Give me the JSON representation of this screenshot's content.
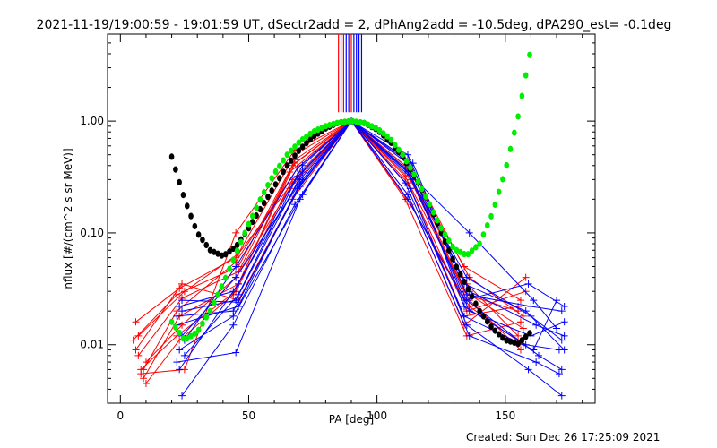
{
  "chart_data": {
    "type": "line",
    "title": "2021-11-19/19:00:59 - 19:01:59 UT, dSectr2add = 2, dPhAng2add = -10.5deg, dPA290_est= -0.1deg",
    "xlabel": "PA [deg]",
    "ylabel": "nflux [#/(cm^2 s sr MeV)]",
    "xlim": [
      -5,
      185
    ],
    "ylim": [
      0.003,
      6
    ],
    "yscale": "log",
    "grid": false,
    "xticks": [
      0,
      50,
      100,
      150
    ],
    "xtick_labels": [
      "0",
      "50",
      "100",
      "150"
    ],
    "yticks": [
      0.01,
      0.1,
      1.0
    ],
    "ytick_labels": [
      "0.01",
      "0.10",
      "1.00"
    ],
    "colors": {
      "red": "#ff0000",
      "blue": "#0000ff",
      "black": "#000000",
      "green": "#00ee00"
    },
    "red_traces": [
      [
        [
          5,
          0.011
        ],
        [
          22,
          0.028
        ],
        [
          46,
          0.05
        ],
        [
          67,
          0.4
        ],
        [
          90,
          1.0
        ],
        [
          112,
          0.35
        ],
        [
          135,
          0.035
        ],
        [
          155,
          0.012
        ]
      ],
      [
        [
          6,
          0.016
        ],
        [
          23,
          0.032
        ],
        [
          45,
          0.06
        ],
        [
          68,
          0.5
        ],
        [
          90,
          1.0
        ],
        [
          113,
          0.3
        ],
        [
          134,
          0.03
        ],
        [
          157,
          0.014
        ]
      ],
      [
        [
          7,
          0.008
        ],
        [
          24,
          0.026
        ],
        [
          46,
          0.045
        ],
        [
          66,
          0.35
        ],
        [
          90,
          1.0
        ],
        [
          111,
          0.4
        ],
        [
          136,
          0.025
        ],
        [
          156,
          0.009
        ]
      ],
      [
        [
          8,
          0.006
        ],
        [
          22,
          0.012
        ],
        [
          45,
          0.03
        ],
        [
          67,
          0.3
        ],
        [
          90,
          1.0
        ],
        [
          112,
          0.28
        ],
        [
          135,
          0.02
        ],
        [
          158,
          0.03
        ]
      ],
      [
        [
          9,
          0.005
        ],
        [
          23,
          0.018
        ],
        [
          46,
          0.035
        ],
        [
          68,
          0.45
        ],
        [
          90,
          1.0
        ],
        [
          113,
          0.25
        ],
        [
          134,
          0.018
        ],
        [
          155,
          0.022
        ]
      ],
      [
        [
          10,
          0.007
        ],
        [
          24,
          0.015
        ],
        [
          45,
          0.04
        ],
        [
          66,
          0.25
        ],
        [
          90,
          1.0
        ],
        [
          112,
          0.45
        ],
        [
          136,
          0.04
        ],
        [
          157,
          0.018
        ]
      ],
      [
        [
          8,
          0.0055
        ],
        [
          25,
          0.006
        ],
        [
          45,
          0.1
        ],
        [
          68,
          0.55
        ],
        [
          90,
          1.0
        ],
        [
          111,
          0.2
        ],
        [
          135,
          0.012
        ],
        [
          156,
          0.016
        ]
      ],
      [
        [
          6,
          0.009
        ],
        [
          24,
          0.035
        ],
        [
          46,
          0.025
        ],
        [
          67,
          0.2
        ],
        [
          90,
          1.0
        ],
        [
          112,
          0.22
        ],
        [
          134,
          0.015
        ],
        [
          158,
          0.04
        ]
      ],
      [
        [
          9,
          0.006
        ],
        [
          22,
          0.02
        ],
        [
          45,
          0.055
        ],
        [
          69,
          0.38
        ],
        [
          90,
          1.0
        ],
        [
          113,
          0.18
        ],
        [
          136,
          0.022
        ],
        [
          157,
          0.01
        ]
      ],
      [
        [
          7,
          0.012
        ],
        [
          25,
          0.03
        ],
        [
          46,
          0.065
        ],
        [
          67,
          0.28
        ],
        [
          90,
          1.0
        ],
        [
          111,
          0.32
        ],
        [
          135,
          0.028
        ],
        [
          155,
          0.02
        ]
      ],
      [
        [
          10,
          0.0045
        ],
        [
          23,
          0.011
        ],
        [
          44,
          0.028
        ],
        [
          68,
          0.42
        ],
        [
          90,
          1.0
        ],
        [
          112,
          0.38
        ],
        [
          134,
          0.05
        ],
        [
          156,
          0.025
        ]
      ]
    ],
    "blue_traces": [
      [
        [
          23,
          0.022
        ],
        [
          44,
          0.03
        ],
        [
          70,
          0.3
        ],
        [
          90,
          1.0
        ],
        [
          112,
          0.5
        ],
        [
          135,
          0.028
        ],
        [
          160,
          0.022
        ],
        [
          172,
          0.02
        ]
      ],
      [
        [
          24,
          0.02
        ],
        [
          45,
          0.025
        ],
        [
          71,
          0.35
        ],
        [
          90,
          1.0
        ],
        [
          111,
          0.45
        ],
        [
          136,
          0.03
        ],
        [
          162,
          0.015
        ],
        [
          173,
          0.012
        ]
      ],
      [
        [
          22,
          0.015
        ],
        [
          46,
          0.022
        ],
        [
          69,
          0.25
        ],
        [
          90,
          1.0
        ],
        [
          113,
          0.4
        ],
        [
          134,
          0.022
        ],
        [
          158,
          0.01
        ],
        [
          171,
          0.009
        ]
      ],
      [
        [
          24,
          0.012
        ],
        [
          45,
          0.04
        ],
        [
          70,
          0.28
        ],
        [
          90,
          1.0
        ],
        [
          112,
          0.35
        ],
        [
          135,
          0.025
        ],
        [
          163,
          0.008
        ],
        [
          172,
          0.006
        ]
      ],
      [
        [
          23,
          0.009
        ],
        [
          44,
          0.018
        ],
        [
          71,
          0.22
        ],
        [
          90,
          1.0
        ],
        [
          114,
          0.3
        ],
        [
          136,
          0.02
        ],
        [
          160,
          0.012
        ],
        [
          173,
          0.016
        ]
      ],
      [
        [
          25,
          0.008
        ],
        [
          46,
          0.028
        ],
        [
          69,
          0.32
        ],
        [
          90,
          1.0
        ],
        [
          111,
          0.28
        ],
        [
          134,
          0.018
        ],
        [
          161,
          0.009
        ],
        [
          170,
          0.025
        ]
      ],
      [
        [
          22,
          0.007
        ],
        [
          45,
          0.0085
        ],
        [
          70,
          0.2
        ],
        [
          90,
          1.0
        ],
        [
          113,
          0.25
        ],
        [
          135,
          0.015
        ],
        [
          159,
          0.006
        ],
        [
          172,
          0.0035
        ]
      ],
      [
        [
          24,
          0.0035
        ],
        [
          44,
          0.015
        ],
        [
          68,
          0.18
        ],
        [
          90,
          1.0
        ],
        [
          112,
          0.22
        ],
        [
          136,
          0.012
        ],
        [
          162,
          0.007
        ],
        [
          171,
          0.0055
        ]
      ],
      [
        [
          23,
          0.006
        ],
        [
          46,
          0.035
        ],
        [
          71,
          0.4
        ],
        [
          90,
          1.0
        ],
        [
          114,
          0.42
        ],
        [
          134,
          0.035
        ],
        [
          158,
          0.02
        ],
        [
          173,
          0.009
        ]
      ],
      [
        [
          25,
          0.011
        ],
        [
          45,
          0.05
        ],
        [
          69,
          0.38
        ],
        [
          90,
          1.0
        ],
        [
          111,
          0.38
        ],
        [
          135,
          0.04
        ],
        [
          160,
          0.018
        ],
        [
          172,
          0.011
        ]
      ],
      [
        [
          22,
          0.018
        ],
        [
          44,
          0.02
        ],
        [
          70,
          0.26
        ],
        [
          90,
          1.0
        ],
        [
          113,
          0.33
        ],
        [
          136,
          0.1
        ],
        [
          161,
          0.025
        ],
        [
          170,
          0.014
        ]
      ],
      [
        [
          24,
          0.025
        ],
        [
          46,
          0.024
        ],
        [
          71,
          0.3
        ],
        [
          90,
          1.0
        ],
        [
          112,
          0.2
        ],
        [
          134,
          0.025
        ],
        [
          159,
          0.035
        ],
        [
          173,
          0.022
        ]
      ]
    ],
    "black_fit": {
      "x_start": 20,
      "x_end": 160,
      "step": 1.5,
      "y": [
        [
          20,
          0.48
        ],
        [
          25,
          0.2
        ],
        [
          30,
          0.1
        ],
        [
          35,
          0.07
        ],
        [
          40,
          0.062
        ],
        [
          45,
          0.075
        ],
        [
          50,
          0.11
        ],
        [
          55,
          0.17
        ],
        [
          60,
          0.26
        ],
        [
          65,
          0.4
        ],
        [
          70,
          0.56
        ],
        [
          75,
          0.72
        ],
        [
          80,
          0.86
        ],
        [
          85,
          0.97
        ],
        [
          90,
          1.0
        ],
        [
          95,
          0.96
        ],
        [
          100,
          0.84
        ],
        [
          105,
          0.66
        ],
        [
          110,
          0.48
        ],
        [
          115,
          0.31
        ],
        [
          120,
          0.19
        ],
        [
          125,
          0.1
        ],
        [
          130,
          0.055
        ],
        [
          135,
          0.033
        ],
        [
          140,
          0.02
        ],
        [
          145,
          0.014
        ],
        [
          150,
          0.011
        ],
        [
          155,
          0.0102
        ],
        [
          160,
          0.013
        ]
      ]
    },
    "green_fit": {
      "x_start": 20,
      "x_end": 160,
      "step": 1.5,
      "y": [
        [
          20,
          0.016
        ],
        [
          25,
          0.011
        ],
        [
          30,
          0.013
        ],
        [
          35,
          0.02
        ],
        [
          40,
          0.035
        ],
        [
          45,
          0.065
        ],
        [
          50,
          0.12
        ],
        [
          55,
          0.21
        ],
        [
          60,
          0.34
        ],
        [
          65,
          0.5
        ],
        [
          70,
          0.66
        ],
        [
          75,
          0.8
        ],
        [
          80,
          0.9
        ],
        [
          85,
          0.97
        ],
        [
          90,
          1.0
        ],
        [
          95,
          0.96
        ],
        [
          100,
          0.86
        ],
        [
          105,
          0.7
        ],
        [
          110,
          0.5
        ],
        [
          115,
          0.32
        ],
        [
          120,
          0.19
        ],
        [
          125,
          0.11
        ],
        [
          130,
          0.072
        ],
        [
          135,
          0.063
        ],
        [
          140,
          0.08
        ],
        [
          145,
          0.15
        ],
        [
          150,
          0.36
        ],
        [
          155,
          1.1
        ],
        [
          160,
          4.5
        ]
      ]
    },
    "saturation_bars": {
      "y_from": 1.2,
      "lines": [
        {
          "x": 85,
          "color": "red"
        },
        {
          "x": 86,
          "color": "blue"
        },
        {
          "x": 87,
          "color": "red"
        },
        {
          "x": 88,
          "color": "blue"
        },
        {
          "x": 89,
          "color": "blue"
        },
        {
          "x": 90,
          "color": "red"
        },
        {
          "x": 91,
          "color": "blue"
        },
        {
          "x": 92,
          "color": "blue"
        },
        {
          "x": 93,
          "color": "blue"
        },
        {
          "x": 94,
          "color": "blue"
        }
      ]
    }
  },
  "footer": {
    "created": "Created: Sun Dec 26 17:25:09 2021"
  }
}
